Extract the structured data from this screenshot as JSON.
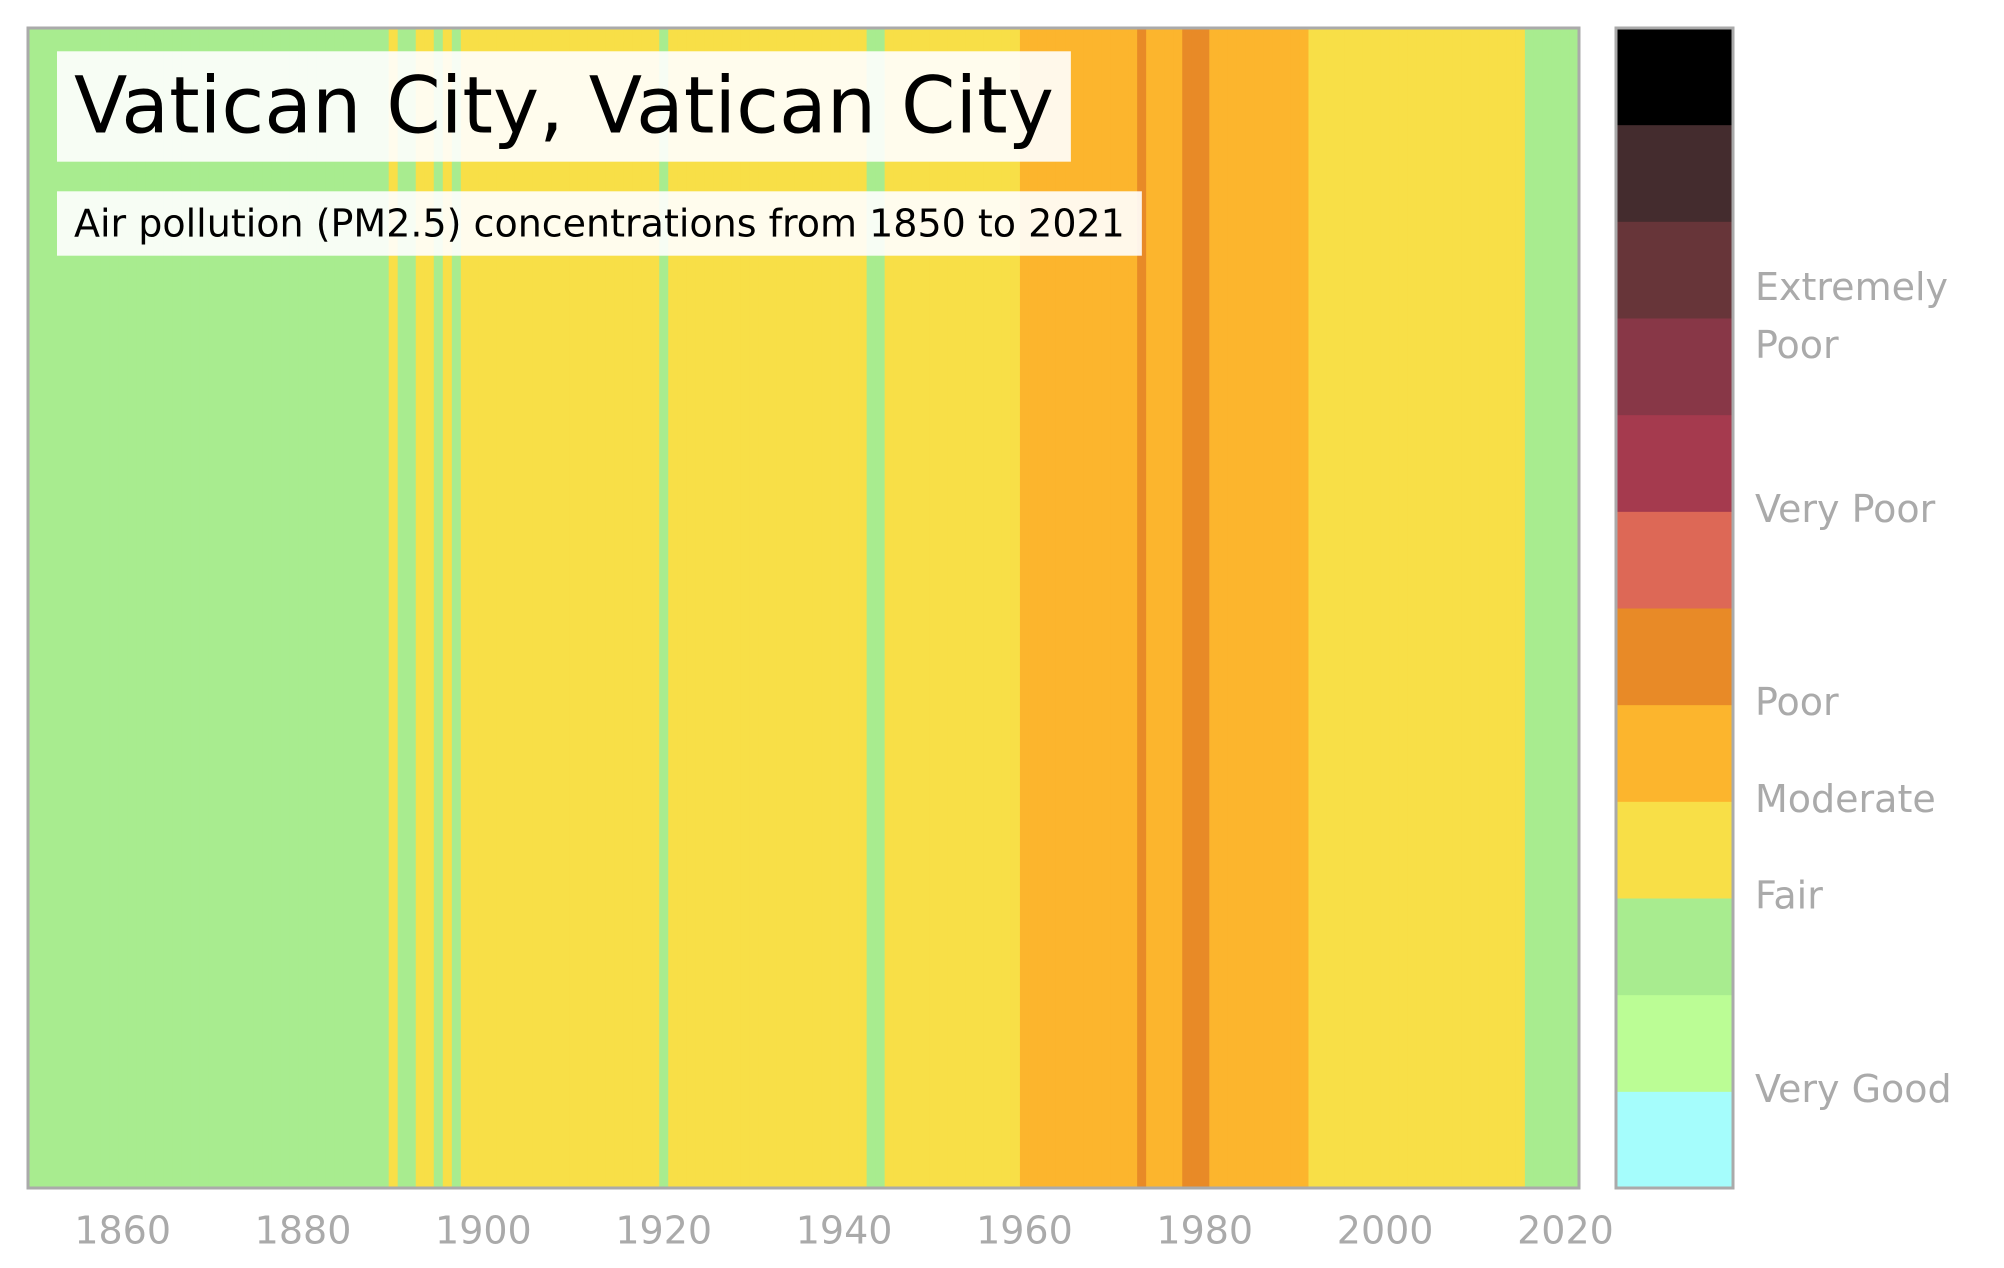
{
  "chart_data": {
    "type": "stripes",
    "title": "Vatican City, Vatican City",
    "subtitle": "Air pollution (PM2.5) concentrations from 1850 to 2021",
    "x": [
      1850,
      1851,
      1852,
      1853,
      1854,
      1855,
      1856,
      1857,
      1858,
      1859,
      1860,
      1861,
      1862,
      1863,
      1864,
      1865,
      1866,
      1867,
      1868,
      1869,
      1870,
      1871,
      1872,
      1873,
      1874,
      1875,
      1876,
      1877,
      1878,
      1879,
      1880,
      1881,
      1882,
      1883,
      1884,
      1885,
      1886,
      1887,
      1888,
      1889,
      1890,
      1891,
      1892,
      1893,
      1894,
      1895,
      1896,
      1897,
      1898,
      1899,
      1900,
      1901,
      1902,
      1903,
      1904,
      1905,
      1906,
      1907,
      1908,
      1909,
      1910,
      1911,
      1912,
      1913,
      1914,
      1915,
      1916,
      1917,
      1918,
      1919,
      1920,
      1921,
      1922,
      1923,
      1924,
      1925,
      1926,
      1927,
      1928,
      1929,
      1930,
      1931,
      1932,
      1933,
      1934,
      1935,
      1936,
      1937,
      1938,
      1939,
      1940,
      1941,
      1942,
      1943,
      1944,
      1945,
      1946,
      1947,
      1948,
      1949,
      1950,
      1951,
      1952,
      1953,
      1954,
      1955,
      1956,
      1957,
      1958,
      1959,
      1960,
      1961,
      1962,
      1963,
      1964,
      1965,
      1966,
      1967,
      1968,
      1969,
      1970,
      1971,
      1972,
      1973,
      1974,
      1975,
      1976,
      1977,
      1978,
      1979,
      1980,
      1981,
      1982,
      1983,
      1984,
      1985,
      1986,
      1987,
      1988,
      1989,
      1990,
      1991,
      1992,
      1993,
      1994,
      1995,
      1996,
      1997,
      1998,
      1999,
      2000,
      2001,
      2002,
      2003,
      2004,
      2005,
      2006,
      2007,
      2008,
      2009,
      2010,
      2011,
      2012,
      2013,
      2014,
      2015,
      2016,
      2017,
      2018,
      2019,
      2020,
      2021
    ],
    "values": [
      2,
      2,
      2,
      2,
      2,
      2,
      2,
      2,
      2,
      2,
      2,
      2,
      2,
      2,
      2,
      2,
      2,
      2,
      2,
      2,
      2,
      2,
      2,
      2,
      2,
      2,
      2,
      2,
      2,
      2,
      2,
      2,
      2,
      2,
      2,
      2,
      2,
      2,
      2,
      2,
      3,
      2,
      2,
      3,
      3,
      2,
      3,
      2,
      3,
      3,
      3,
      3,
      3,
      3,
      3,
      3,
      3,
      3,
      3,
      3,
      3,
      3,
      3,
      3,
      3,
      3,
      3,
      3,
      3,
      3,
      2,
      3,
      3,
      3,
      3,
      3,
      3,
      3,
      3,
      3,
      3,
      3,
      3,
      3,
      3,
      3,
      3,
      3,
      3,
      3,
      3,
      3,
      3,
      2,
      2,
      3,
      3,
      3,
      3,
      3,
      3,
      3,
      3,
      3,
      3,
      3,
      3,
      3,
      3,
      3,
      4,
      4,
      4,
      4,
      4,
      4,
      4,
      4,
      4,
      4,
      4,
      4,
      4,
      5,
      4,
      4,
      4,
      4,
      5,
      5,
      5,
      4,
      4,
      4,
      4,
      4,
      4,
      4,
      4,
      4,
      4,
      4,
      3,
      3,
      3,
      3,
      3,
      3,
      3,
      3,
      3,
      3,
      3,
      3,
      3,
      3,
      3,
      3,
      3,
      3,
      3,
      3,
      3,
      3,
      3,
      3,
      2,
      2,
      2,
      2,
      2,
      2
    ],
    "xlim": [
      1849.5,
      2021.5
    ],
    "xticks": [
      1860,
      1880,
      1900,
      1920,
      1940,
      1960,
      1980,
      2000,
      2020
    ],
    "colors": [
      "#a5fdfc",
      "#bbfd95",
      "#a8ec8f",
      "#f8df47",
      "#fcb52d",
      "#e88a27",
      "#dd6856",
      "#a53a4e",
      "#883747",
      "#673539",
      "#442c2e",
      "#000000"
    ],
    "clim": [
      0,
      12
    ],
    "cticks": [
      {
        "value": 1,
        "label": "Very Good"
      },
      {
        "value": 3,
        "label": "Fair"
      },
      {
        "value": 4,
        "label": "Moderate"
      },
      {
        "value": 5,
        "label": "Poor"
      },
      {
        "value": 7,
        "label": "Very Poor"
      },
      {
        "value": 9,
        "label": "Extremely Poor"
      }
    ]
  }
}
